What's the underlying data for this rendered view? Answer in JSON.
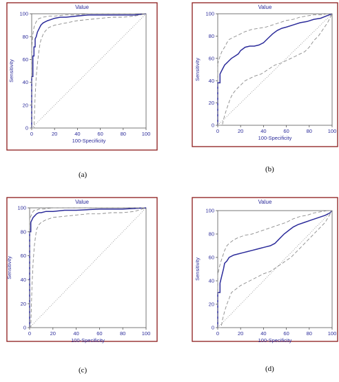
{
  "colors": {
    "frame": "#8b1a1a",
    "curve": "#2b2b9a",
    "ci": "#8a8a8a",
    "reference": "#8a8a8a",
    "text": "#2b2b9a"
  },
  "chart_data": [
    {
      "type": "line",
      "panel": "(a)",
      "title": "Value",
      "xlabel": "100-Specificity",
      "ylabel": "Sensitivity",
      "xlim": [
        0,
        100
      ],
      "ylim": [
        0,
        100
      ],
      "xticks": [
        "0",
        "20",
        "40",
        "60",
        "80",
        "100"
      ],
      "yticks": [
        "0",
        "20",
        "40",
        "60",
        "80",
        "100"
      ],
      "grid": false,
      "series": [
        {
          "role": "curve",
          "x": [
            0,
            0,
            1,
            1,
            2,
            2,
            3,
            3,
            4,
            5,
            6,
            7,
            8,
            9,
            10,
            12,
            14,
            17,
            20,
            25,
            30,
            40,
            50,
            60,
            70,
            80,
            90,
            100
          ],
          "y": [
            0,
            45,
            45,
            63,
            63,
            71,
            71,
            78,
            80,
            84,
            86,
            88,
            90,
            91,
            92,
            93,
            94,
            95,
            96,
            97,
            97,
            98,
            99,
            99,
            99,
            99,
            99,
            100
          ]
        },
        {
          "role": "ci-upper",
          "x": [
            0,
            0,
            1,
            2,
            3,
            4,
            5,
            7,
            10,
            15,
            20,
            30,
            40,
            50,
            60,
            80,
            100
          ],
          "y": [
            0,
            70,
            82,
            88,
            91,
            93,
            95,
            96,
            97,
            98,
            98,
            99,
            99,
            100,
            100,
            100,
            100
          ]
        },
        {
          "role": "ci-lower",
          "x": [
            0,
            2,
            3,
            4,
            5,
            6,
            7,
            8,
            10,
            12,
            15,
            20,
            30,
            40,
            50,
            60,
            70,
            80,
            90,
            100
          ],
          "y": [
            0,
            0,
            28,
            45,
            56,
            65,
            72,
            77,
            82,
            85,
            88,
            90,
            92,
            94,
            95,
            96,
            97,
            97,
            98,
            100
          ]
        },
        {
          "role": "reference",
          "x": [
            0,
            100
          ],
          "y": [
            0,
            100
          ]
        }
      ]
    },
    {
      "type": "line",
      "panel": "(b)",
      "title": "Value",
      "xlabel": "100-Specificity",
      "ylabel": "Sensitivity",
      "xlim": [
        0,
        100
      ],
      "ylim": [
        0,
        100
      ],
      "xticks": [
        "0",
        "20",
        "40",
        "60",
        "80",
        "100"
      ],
      "yticks": [
        "0",
        "20",
        "40",
        "60",
        "80",
        "100"
      ],
      "grid": false,
      "series": [
        {
          "role": "curve",
          "x": [
            0,
            0,
            2,
            2,
            4,
            6,
            8,
            10,
            12,
            15,
            18,
            20,
            24,
            28,
            32,
            36,
            40,
            44,
            48,
            52,
            56,
            60,
            66,
            72,
            78,
            84,
            90,
            95,
            100
          ],
          "y": [
            0,
            38,
            38,
            46,
            50,
            54,
            56,
            58,
            60,
            62,
            64,
            67,
            70,
            71,
            71,
            72,
            74,
            78,
            82,
            85,
            87,
            88,
            90,
            92,
            93,
            95,
            96,
            98,
            100
          ]
        },
        {
          "role": "ci-upper",
          "x": [
            0,
            0,
            2,
            4,
            6,
            8,
            10,
            14,
            18,
            24,
            30,
            36,
            42,
            48,
            54,
            60,
            66,
            72,
            78,
            84,
            90,
            96,
            100
          ],
          "y": [
            0,
            55,
            62,
            67,
            70,
            74,
            77,
            79,
            81,
            84,
            86,
            87,
            88,
            90,
            92,
            94,
            95,
            97,
            98,
            99,
            99,
            100,
            100
          ]
        },
        {
          "role": "ci-lower",
          "x": [
            0,
            4,
            5,
            7,
            9,
            11,
            13,
            16,
            20,
            24,
            28,
            32,
            38,
            44,
            50,
            56,
            60,
            64,
            68,
            72,
            76,
            80,
            84,
            88,
            92,
            96,
            100
          ],
          "y": [
            0,
            0,
            5,
            12,
            18,
            24,
            28,
            32,
            36,
            40,
            42,
            44,
            46,
            50,
            54,
            56,
            58,
            60,
            62,
            64,
            66,
            70,
            76,
            80,
            86,
            92,
            100
          ]
        },
        {
          "role": "reference",
          "x": [
            0,
            100
          ],
          "y": [
            0,
            100
          ]
        }
      ]
    },
    {
      "type": "line",
      "panel": "(c)",
      "title": "Value",
      "xlabel": "100-Specificity",
      "ylabel": "Sensitivity",
      "xlim": [
        0,
        100
      ],
      "ylim": [
        0,
        100
      ],
      "xticks": [
        "0",
        "20",
        "40",
        "60",
        "80",
        "100"
      ],
      "yticks": [
        "0",
        "20",
        "40",
        "60",
        "80",
        "100"
      ],
      "grid": false,
      "series": [
        {
          "role": "curve",
          "x": [
            0,
            0,
            1,
            1,
            2,
            3,
            4,
            5,
            6,
            8,
            10,
            14,
            20,
            30,
            40,
            60,
            80,
            100
          ],
          "y": [
            0,
            80,
            80,
            88,
            90,
            92,
            93,
            94,
            95,
            96,
            96,
            97,
            97,
            98,
            98,
            99,
            99,
            100
          ]
        },
        {
          "role": "ci-upper",
          "x": [
            0,
            0,
            1,
            2,
            3,
            4,
            6,
            8,
            12,
            20,
            40,
            60,
            100
          ],
          "y": [
            0,
            90,
            93,
            95,
            97,
            98,
            98,
            99,
            99,
            100,
            100,
            100,
            100
          ]
        },
        {
          "role": "ci-lower",
          "x": [
            0,
            1,
            2,
            3,
            4,
            5,
            6,
            8,
            10,
            14,
            20,
            30,
            40,
            50,
            60,
            70,
            80,
            90,
            100
          ],
          "y": [
            0,
            0,
            35,
            55,
            68,
            76,
            82,
            86,
            88,
            90,
            92,
            93,
            94,
            95,
            95,
            96,
            96,
            97,
            100
          ]
        },
        {
          "role": "reference",
          "x": [
            0,
            100
          ],
          "y": [
            0,
            100
          ]
        }
      ]
    },
    {
      "type": "line",
      "panel": "(d)",
      "title": "Value",
      "xlabel": "100-Specificity",
      "ylabel": "Sensitivity",
      "xlim": [
        0,
        100
      ],
      "ylim": [
        0,
        100
      ],
      "xticks": [
        "0",
        "20",
        "40",
        "60",
        "80",
        "100"
      ],
      "yticks": [
        "0",
        "20",
        "40",
        "60",
        "80",
        "100"
      ],
      "grid": false,
      "series": [
        {
          "role": "curve",
          "x": [
            0,
            0,
            2,
            2,
            4,
            5,
            6,
            8,
            10,
            14,
            18,
            22,
            26,
            30,
            34,
            38,
            42,
            46,
            50,
            54,
            58,
            62,
            66,
            70,
            76,
            82,
            88,
            94,
            98,
            100
          ],
          "y": [
            0,
            30,
            30,
            38,
            46,
            50,
            55,
            57,
            60,
            62,
            63,
            64,
            65,
            66,
            67,
            68,
            69,
            70,
            72,
            76,
            80,
            83,
            86,
            88,
            90,
            92,
            94,
            96,
            98,
            100
          ]
        },
        {
          "role": "ci-upper",
          "x": [
            0,
            0,
            2,
            4,
            6,
            8,
            10,
            14,
            18,
            24,
            30,
            36,
            42,
            48,
            54,
            60,
            66,
            72,
            78,
            84,
            90,
            96,
            100
          ],
          "y": [
            0,
            45,
            54,
            60,
            66,
            70,
            72,
            75,
            77,
            79,
            80,
            82,
            84,
            86,
            88,
            90,
            93,
            95,
            96,
            98,
            99,
            100,
            100
          ]
        },
        {
          "role": "ci-lower",
          "x": [
            0,
            3,
            4,
            6,
            8,
            10,
            12,
            16,
            20,
            24,
            28,
            32,
            36,
            40,
            46,
            52,
            58,
            64,
            70,
            76,
            82,
            88,
            94,
            100
          ],
          "y": [
            0,
            0,
            6,
            14,
            20,
            25,
            30,
            33,
            36,
            38,
            40,
            42,
            44,
            46,
            48,
            52,
            56,
            60,
            66,
            72,
            78,
            84,
            90,
            100
          ]
        },
        {
          "role": "reference",
          "x": [
            0,
            100
          ],
          "y": [
            0,
            100
          ]
        }
      ]
    }
  ]
}
